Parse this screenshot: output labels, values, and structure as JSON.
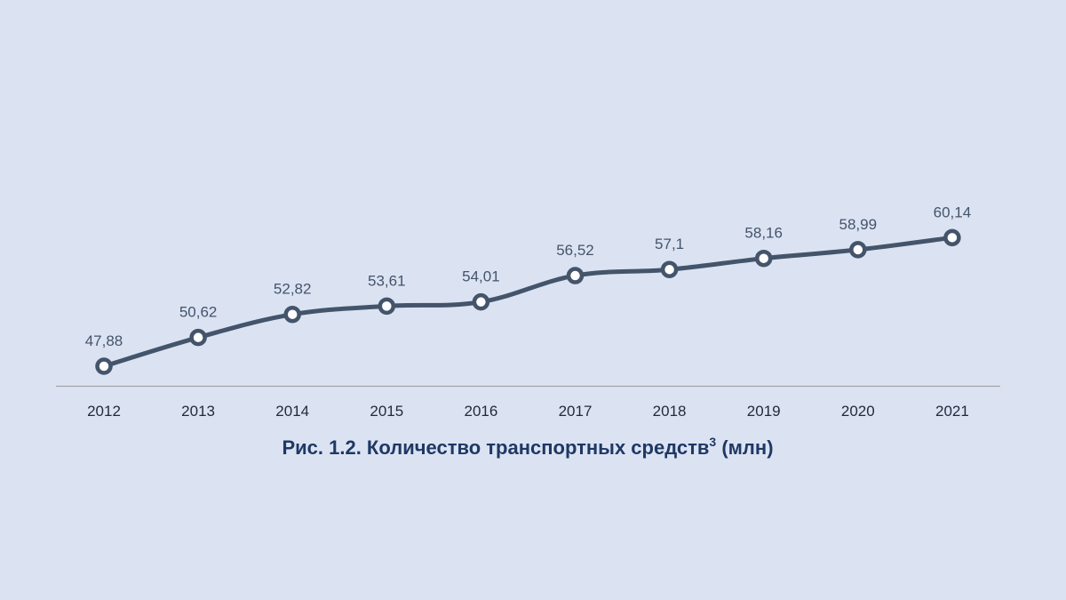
{
  "chart_data": {
    "type": "line",
    "title": "Рис. 1.2. Количество транспортных средств",
    "title_superscript": "3",
    "title_suffix": " (млн)",
    "categories": [
      "2012",
      "2013",
      "2014",
      "2015",
      "2016",
      "2017",
      "2018",
      "2019",
      "2020",
      "2021"
    ],
    "values": [
      47.88,
      50.62,
      52.82,
      53.61,
      54.01,
      56.52,
      57.1,
      58.16,
      58.99,
      60.14
    ],
    "data_labels": [
      "47,88",
      "50,62",
      "52,82",
      "53,61",
      "54,01",
      "56,52",
      "57,1",
      "58,16",
      "58,99",
      "60,14"
    ],
    "xlabel": "",
    "ylabel": "",
    "grid": false,
    "legend": "none",
    "colors": {
      "background": "#dbe3f3",
      "line": "#44546a",
      "marker_fill": "#ffffff",
      "axis": "#a6a6a6",
      "title": "#1f3864"
    }
  }
}
